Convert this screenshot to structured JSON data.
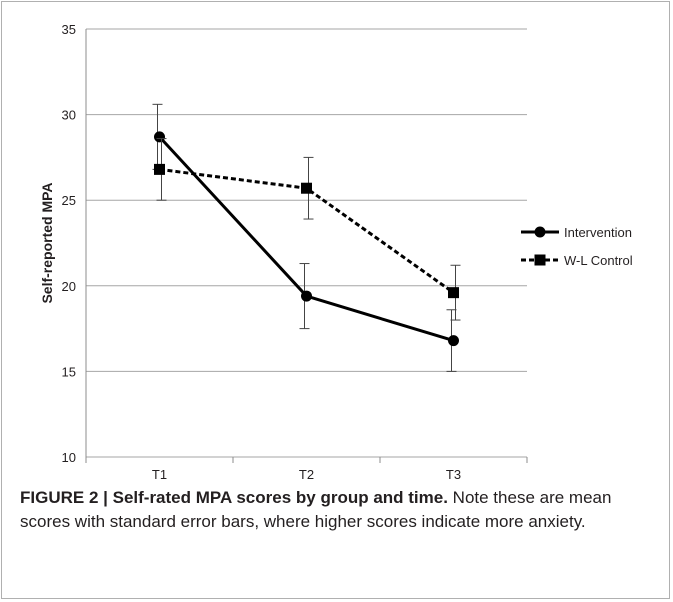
{
  "chart_data": {
    "type": "line",
    "title": "",
    "xlabel": "",
    "ylabel": "Self-reported MPA",
    "categories": [
      "T1",
      "T2",
      "T3"
    ],
    "ylim": [
      10,
      35
    ],
    "yticks": [
      10,
      15,
      20,
      25,
      30,
      35
    ],
    "grid": true,
    "legend_position": "right",
    "series": [
      {
        "name": "Intervention",
        "values": [
          28.7,
          19.4,
          16.8
        ],
        "error": [
          1.9,
          1.9,
          1.8
        ],
        "marker": "circle",
        "line_style": "solid",
        "color": "#000000"
      },
      {
        "name": "W-L Control",
        "values": [
          26.8,
          25.7,
          19.6
        ],
        "error": [
          1.8,
          1.8,
          1.6
        ],
        "marker": "square",
        "line_style": "dotted",
        "color": "#000000"
      }
    ]
  },
  "caption": {
    "lead": "FIGURE 2 | Self-rated MPA scores by group and time.",
    "body": " Note these are mean scores with standard error bars, where higher scores indicate more anxiety."
  },
  "colors": {
    "grid": "#a6a6a6",
    "axis": "#8c8c8c",
    "text": "#231f20"
  }
}
